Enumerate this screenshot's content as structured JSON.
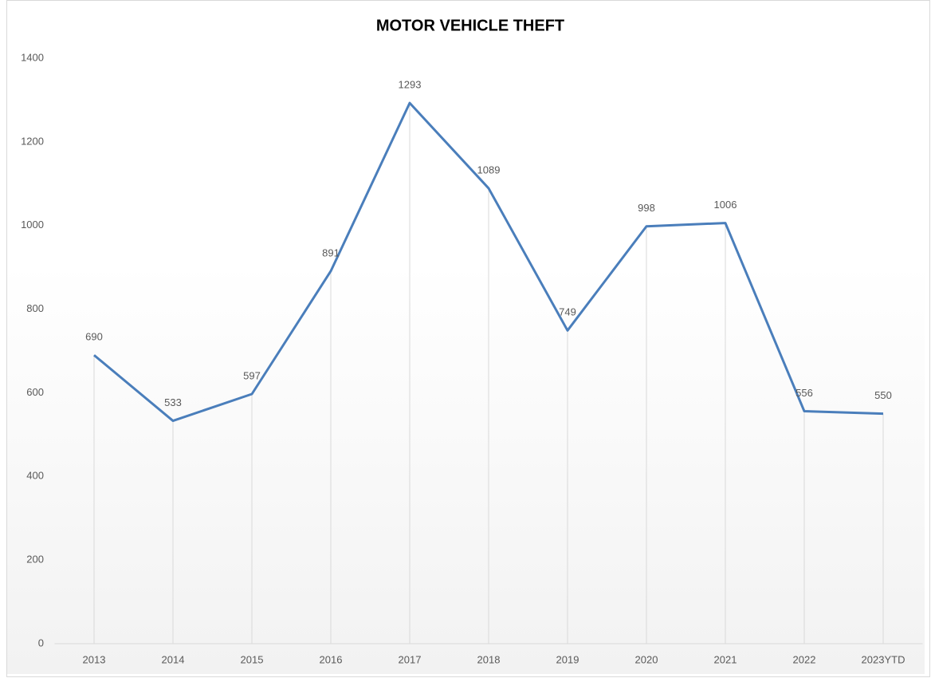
{
  "chart_data": {
    "type": "line",
    "title": "MOTOR VEHICLE THEFT",
    "categories": [
      "2013",
      "2014",
      "2015",
      "2016",
      "2017",
      "2018",
      "2019",
      "2020",
      "2021",
      "2022",
      "2023YTD"
    ],
    "values": [
      690,
      533,
      597,
      891,
      1293,
      1089,
      749,
      998,
      1006,
      556,
      550
    ],
    "color": "#4a7ebb",
    "ylim": [
      0,
      1400
    ],
    "yticks": [
      0,
      200,
      400,
      600,
      800,
      1000,
      1200,
      1400
    ],
    "grid": false,
    "drop_lines": true
  }
}
